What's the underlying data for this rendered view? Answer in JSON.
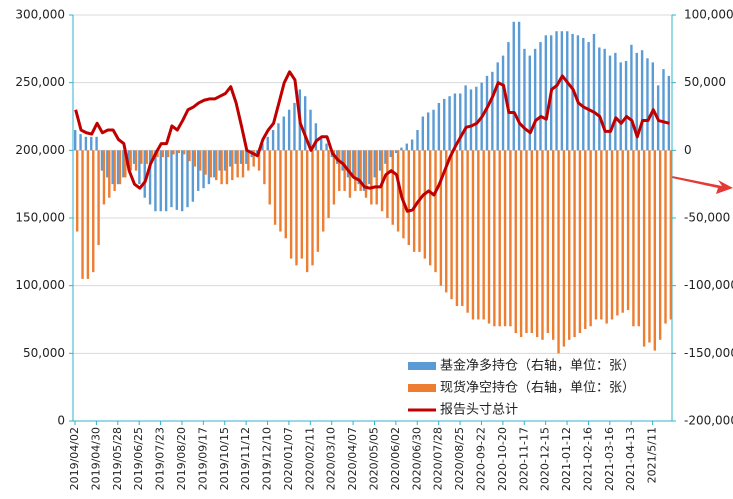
{
  "chart_data": {
    "type": "bar-line",
    "categories": [
      "2019/04/02",
      null,
      null,
      null,
      "2019/04/30",
      null,
      null,
      null,
      "2019/05/28",
      null,
      null,
      null,
      "2019/06/25",
      null,
      null,
      null,
      "2019/07/23",
      null,
      null,
      null,
      "2019/08/20",
      null,
      null,
      null,
      "2019/09/17",
      null,
      null,
      null,
      "2019/10/15",
      null,
      null,
      null,
      "2019/11/12",
      null,
      null,
      null,
      "2019/12/10",
      null,
      null,
      null,
      "2020/01/07",
      null,
      null,
      null,
      "2020/02/11",
      null,
      null,
      null,
      "2020/03/10",
      null,
      null,
      null,
      "2020/04/07",
      null,
      null,
      null,
      "2020/05/05",
      null,
      null,
      null,
      "2020/06/02",
      null,
      null,
      null,
      "2020/06/30",
      null,
      null,
      null,
      "2020/07/28",
      null,
      null,
      null,
      "2020/08/25",
      null,
      null,
      null,
      "2020-09-22",
      null,
      null,
      null,
      "2020-10-20",
      null,
      null,
      null,
      "2020-11-17",
      null,
      null,
      null,
      "2020-12-15",
      null,
      null,
      null,
      "2021-01-12",
      null,
      null,
      null,
      "2021-02-16",
      null,
      null,
      null,
      "2021-03-16",
      null,
      null,
      null,
      "2021-04-13",
      null,
      null,
      null,
      "2021/5/11",
      null,
      null,
      null
    ],
    "series": [
      {
        "name": "基金净多持仓（右轴，单位：张）",
        "color": "#5b9bd5",
        "axis": "y2",
        "kind": "bar",
        "values": [
          15000,
          12000,
          10000,
          10000,
          10000,
          -15000,
          -20000,
          -25000,
          -25000,
          -20000,
          -15000,
          -10000,
          -25000,
          -35000,
          -40000,
          -45000,
          -45000,
          -45000,
          -42000,
          -44000,
          -45000,
          -42000,
          -38000,
          -30000,
          -28000,
          -25000,
          -20000,
          -15000,
          -15000,
          -12000,
          -10000,
          -10000,
          -10000,
          -5000,
          -2000,
          5000,
          10000,
          15000,
          20000,
          25000,
          30000,
          35000,
          45000,
          40000,
          30000,
          20000,
          10000,
          5000,
          -5000,
          -10000,
          -15000,
          -20000,
          -20000,
          -25000,
          -30000,
          -25000,
          -20000,
          -15000,
          -10000,
          -5000,
          -2000,
          2000,
          5000,
          8000,
          15000,
          25000,
          28000,
          30000,
          35000,
          38000,
          40000,
          42000,
          42000,
          48000,
          45000,
          47000,
          50000,
          55000,
          58000,
          65000,
          70000,
          80000,
          95000,
          95000,
          75000,
          70000,
          75000,
          80000,
          85000,
          85000,
          88000,
          88000,
          88000,
          86000,
          85000,
          83000,
          80000,
          86000,
          76000,
          75000,
          70000,
          72000,
          65000,
          66000,
          78000,
          72000,
          74000,
          68000,
          65000,
          48000,
          60000,
          55000
        ]
      },
      {
        "name": "现货净空持仓（右轴，单位：张）",
        "color": "#ed7d31",
        "axis": "y2",
        "kind": "bar",
        "values": [
          -60000,
          -95000,
          -95000,
          -90000,
          -70000,
          -40000,
          -35000,
          -30000,
          -25000,
          -20000,
          -15000,
          -15000,
          -10000,
          -10000,
          -8000,
          -5000,
          -5000,
          -5000,
          -3000,
          -2000,
          -3000,
          -8000,
          -12000,
          -15000,
          -18000,
          -20000,
          -22000,
          -25000,
          -25000,
          -22000,
          -20000,
          -20000,
          -15000,
          -12000,
          -15000,
          -25000,
          -40000,
          -55000,
          -60000,
          -65000,
          -80000,
          -85000,
          -80000,
          -90000,
          -85000,
          -75000,
          -60000,
          -50000,
          -40000,
          -30000,
          -30000,
          -35000,
          -30000,
          -30000,
          -35000,
          -40000,
          -40000,
          -45000,
          -50000,
          -55000,
          -60000,
          -65000,
          -70000,
          -75000,
          -75000,
          -80000,
          -85000,
          -90000,
          -100000,
          -105000,
          -110000,
          -115000,
          -115000,
          -120000,
          -125000,
          -125000,
          -125000,
          -128000,
          -130000,
          -130000,
          -130000,
          -130000,
          -135000,
          -138000,
          -135000,
          -135000,
          -138000,
          -140000,
          -135000,
          -140000,
          -150000,
          -145000,
          -140000,
          -138000,
          -135000,
          -132000,
          -130000,
          -125000,
          -125000,
          -128000,
          -125000,
          -122000,
          -120000,
          -118000,
          -130000,
          -130000,
          -145000,
          -142000,
          -148000,
          -140000,
          -128000,
          -125000
        ]
      },
      {
        "name": "报告头寸总计",
        "color": "#c00000",
        "axis": "y",
        "kind": "line",
        "values": [
          230000,
          215000,
          213000,
          212000,
          220000,
          213000,
          215000,
          215000,
          208000,
          205000,
          185000,
          175000,
          172000,
          177000,
          190000,
          198000,
          205000,
          205000,
          218000,
          215000,
          222000,
          230000,
          232000,
          235000,
          237000,
          238000,
          238000,
          240000,
          242000,
          247000,
          235000,
          218000,
          200000,
          198000,
          196000,
          208000,
          215000,
          220000,
          235000,
          250000,
          258000,
          252000,
          220000,
          210000,
          200000,
          207000,
          210000,
          210000,
          198000,
          193000,
          190000,
          185000,
          180000,
          178000,
          173000,
          172000,
          173000,
          173000,
          182000,
          185000,
          182000,
          165000,
          155000,
          156000,
          162000,
          167000,
          170000,
          167000,
          175000,
          185000,
          195000,
          203000,
          210000,
          217000,
          218000,
          220000,
          225000,
          232000,
          240000,
          250000,
          248000,
          228000,
          228000,
          220000,
          216000,
          213000,
          222000,
          225000,
          223000,
          245000,
          248000,
          255000,
          250000,
          245000,
          235000,
          232000,
          230000,
          228000,
          225000,
          214000,
          214000,
          224000,
          220000,
          225000,
          222000,
          210000,
          222000,
          222000,
          230000,
          222000,
          221000,
          220000
        ]
      }
    ],
    "ylim": [
      0,
      300000
    ],
    "yticks": [
      0,
      {
        "value": 50000,
        "label": "50,000"
      },
      {
        "value": 100000,
        "label": "100,000"
      },
      {
        "value": 150000,
        "label": "150,000"
      },
      {
        "value": 200000,
        "label": "200,000"
      },
      {
        "value": 250000,
        "label": "250,000"
      },
      {
        "value": 300000,
        "label": "300,000"
      }
    ],
    "y2lim": [
      -200000,
      100000
    ],
    "y2ticks": [
      {
        "value": -200000,
        "label": "-200,000"
      },
      {
        "value": -150000,
        "label": "-150,000"
      },
      {
        "value": -100000,
        "label": "-100,000"
      },
      {
        "value": -50000,
        "label": "-50,000"
      },
      0,
      {
        "value": 50000,
        "label": "50,000"
      },
      {
        "value": 100000,
        "label": "100,000"
      }
    ],
    "grid": true
  }
}
